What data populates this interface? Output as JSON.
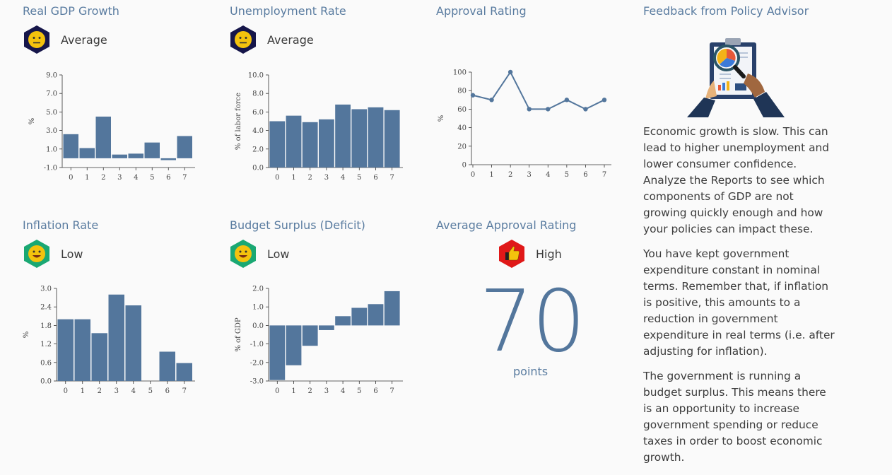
{
  "colors": {
    "bar": "#53769c",
    "title": "#5a7ca0",
    "neutral_hex": "#16164a",
    "good_hex": "#1aa873",
    "high_hex": "#e01818"
  },
  "panels": {
    "gdp": {
      "title": "Real GDP Growth",
      "status": "Average",
      "icon": "neutral-face-icon"
    },
    "unemp": {
      "title": "Unemployment Rate",
      "status": "Average",
      "icon": "neutral-face-icon"
    },
    "approval": {
      "title": "Approval Rating"
    },
    "inflation": {
      "title": "Inflation Rate",
      "status": "Low",
      "icon": "happy-face-icon"
    },
    "budget": {
      "title": "Budget Surplus (Deficit)",
      "status": "Low",
      "icon": "happy-face-icon"
    },
    "avg_approval": {
      "title": "Average Approval Rating",
      "status": "High",
      "icon": "thumbs-up-icon",
      "value": "70",
      "unit": "points"
    }
  },
  "feedback": {
    "title": "Feedback from Policy Advisor",
    "paragraphs": [
      "Economic growth is slow. This can lead to higher unemployment and lower consumer confidence. Analyze the Reports to see which components of GDP are not growing quickly enough and how your policies can impact these.",
      "You have kept government expenditure constant in nominal terms. Remember that, if inflation is positive, this amounts to a reduction in government expenditure in real terms (i.e. after adjusting for inflation).",
      "The government is running a budget surplus. This means there is an opportunity to increase government spending or reduce taxes in order to boost economic growth."
    ]
  },
  "chart_data": [
    {
      "id": "gdp",
      "type": "bar",
      "categories": [
        "0",
        "1",
        "2",
        "3",
        "4",
        "5",
        "6",
        "7"
      ],
      "values": [
        2.6,
        1.1,
        4.5,
        0.4,
        0.5,
        1.7,
        -0.2,
        2.4
      ],
      "ylabel": "%",
      "ylim": [
        -1.0,
        9.0
      ],
      "ticks": [
        "-1.0",
        "1.0",
        "3.0",
        "5.0",
        "7.0",
        "9.0"
      ]
    },
    {
      "id": "unemp",
      "type": "bar",
      "categories": [
        "0",
        "1",
        "2",
        "3",
        "4",
        "5",
        "6",
        "7"
      ],
      "values": [
        5.0,
        5.6,
        4.9,
        5.2,
        6.8,
        6.3,
        6.5,
        6.2
      ],
      "ylabel": "% of labor force",
      "ylim": [
        0.0,
        10.0
      ],
      "ticks": [
        "0.0",
        "2.0",
        "4.0",
        "6.0",
        "8.0",
        "10.0"
      ]
    },
    {
      "id": "approval",
      "type": "line",
      "categories": [
        "0",
        "1",
        "2",
        "3",
        "4",
        "5",
        "6",
        "7"
      ],
      "values": [
        75,
        70,
        100,
        60,
        60,
        70,
        60,
        70
      ],
      "ylabel": "%",
      "ylim": [
        0,
        100
      ],
      "ticks": [
        "0",
        "20",
        "40",
        "60",
        "80",
        "100"
      ]
    },
    {
      "id": "inflation",
      "type": "bar",
      "categories": [
        "0",
        "1",
        "2",
        "3",
        "4",
        "5",
        "6",
        "7"
      ],
      "values": [
        2.0,
        2.0,
        1.55,
        2.8,
        2.45,
        0.0,
        0.95,
        0.58
      ],
      "ylabel": "%",
      "ylim": [
        0.0,
        3.0
      ],
      "ticks": [
        "0.0",
        "0.6",
        "1.2",
        "1.8",
        "2.4",
        "3.0"
      ]
    },
    {
      "id": "budget",
      "type": "bar",
      "categories": [
        "0",
        "1",
        "2",
        "3",
        "4",
        "5",
        "6",
        "7"
      ],
      "values": [
        -2.95,
        -2.15,
        -1.1,
        -0.25,
        0.5,
        0.95,
        1.15,
        1.85
      ],
      "ylabel": "% of GDP",
      "ylim": [
        -3.0,
        2.0
      ],
      "ticks": [
        "-3.0",
        "-2.0",
        "-1.0",
        "0.0",
        "1.0",
        "2.0"
      ]
    }
  ]
}
